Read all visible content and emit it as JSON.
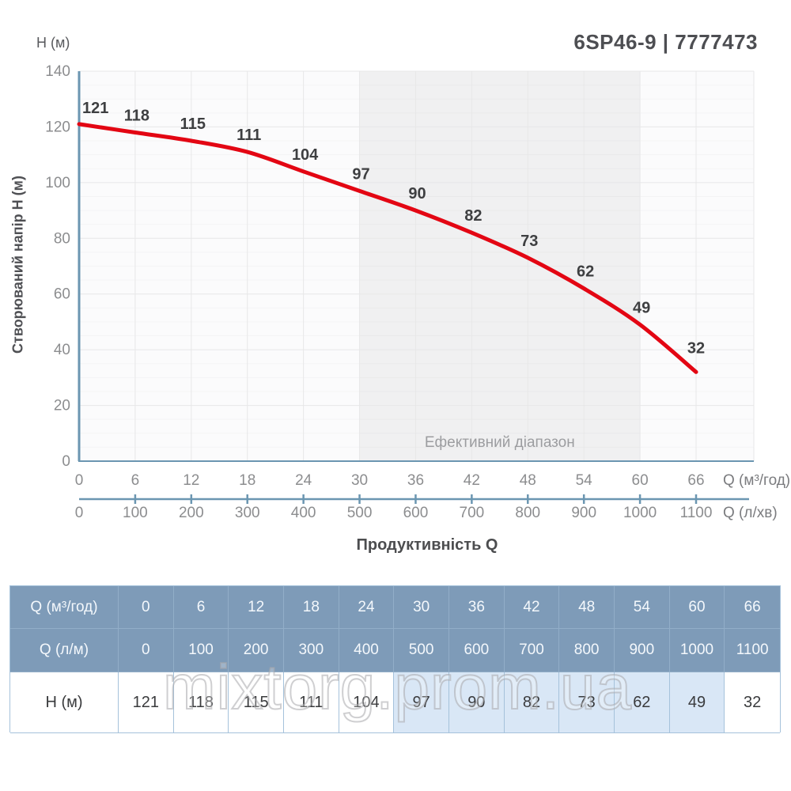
{
  "header": {
    "title": "6SP46-9 | 7777473"
  },
  "chart_data": {
    "type": "line",
    "title": "6SP46-9 | 7777473",
    "x": [
      0,
      6,
      12,
      18,
      24,
      30,
      36,
      42,
      48,
      54,
      60,
      66
    ],
    "x2": [
      0,
      100,
      200,
      300,
      400,
      500,
      600,
      700,
      800,
      900,
      1000,
      1100
    ],
    "series": [
      {
        "name": "H",
        "values": [
          121,
          118,
          115,
          111,
          104,
          97,
          90,
          82,
          73,
          62,
          49,
          32
        ]
      }
    ],
    "ylim": [
      0,
      140
    ],
    "ytick_step": 20,
    "y_axis_unit": "H (м)",
    "ylabel": "Створюваний напір H (м)",
    "xlabel": "Продуктивність Q",
    "x_unit": "Q (м³/год)",
    "x2_unit": "Q (л/хв)",
    "effective_range": {
      "from": 30,
      "to": 60,
      "label": "Ефективний діапазон"
    },
    "grid": true,
    "legend_position": "none",
    "colors": {
      "curve": "#e30613",
      "axis": "#6b96b1",
      "band": "#f0f0f1",
      "grid": "#e7e7e8",
      "tick_text": "#8c8d8f",
      "data_label_text": "#3e3f41",
      "band_label_text": "#9c9da0",
      "unit_text": "#7b7c7f",
      "xlabel_text": "#4c4d4f"
    }
  },
  "table": {
    "rows": [
      {
        "label": "Q (м³/год)",
        "header": true,
        "values": [
          "0",
          "6",
          "12",
          "18",
          "24",
          "30",
          "36",
          "42",
          "48",
          "54",
          "60",
          "66"
        ]
      },
      {
        "label": "Q (л/м)",
        "header": true,
        "values": [
          "0",
          "100",
          "200",
          "300",
          "400",
          "500",
          "600",
          "700",
          "800",
          "900",
          "1000",
          "1100"
        ]
      },
      {
        "label": "H (м)",
        "header": false,
        "highlight_from": 5,
        "highlight_to": 10,
        "values": [
          "121",
          "118",
          "115",
          "111",
          "104",
          "97",
          "90",
          "82",
          "73",
          "62",
          "49",
          "32"
        ]
      }
    ]
  },
  "watermark": {
    "text": "mixtorg.prom.ua"
  }
}
